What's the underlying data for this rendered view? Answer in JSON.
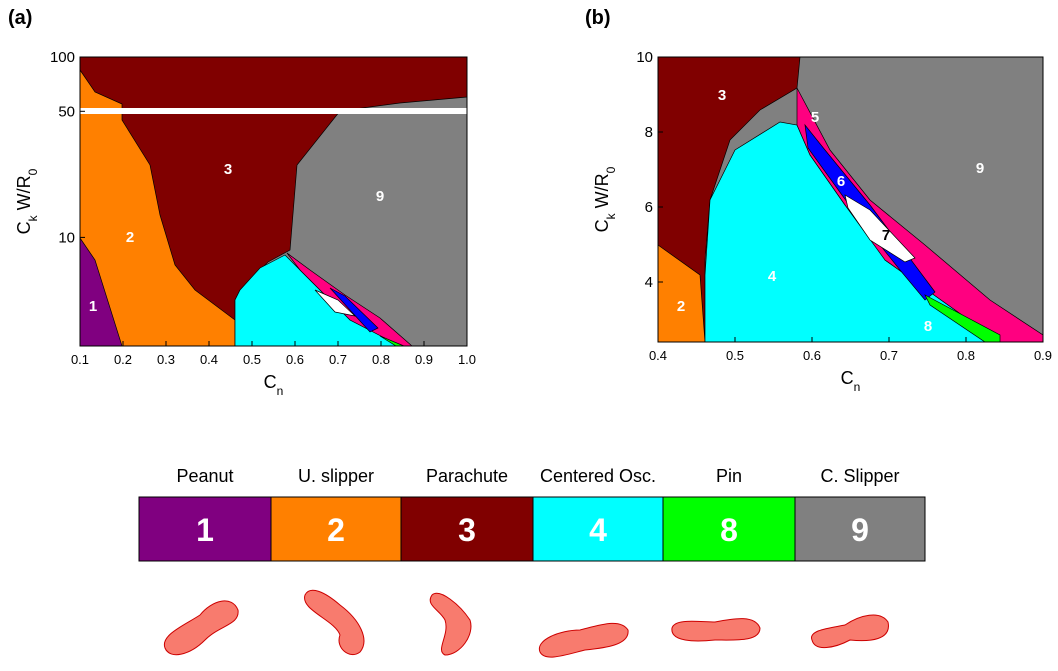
{
  "panels": [
    {
      "label": "(a)",
      "type": "area",
      "xlim": [
        0.1,
        1.0
      ],
      "xticks": [
        0.1,
        0.2,
        0.3,
        0.4,
        0.5,
        0.6,
        0.7,
        0.8,
        0.9,
        {
          "value": 1,
          "label": "1.0"
        }
      ],
      "ylim": [
        2.5,
        100
      ],
      "yticks": [
        10,
        50,
        100
      ],
      "log_y": true,
      "x_label": [
        "C",
        "n"
      ],
      "y_label": [
        "C",
        "k",
        " W/R",
        "0"
      ],
      "regions": [
        "1",
        "2",
        "3",
        "9"
      ]
    },
    {
      "label": "(b)",
      "type": "area",
      "xlim": [
        0.4,
        0.9
      ],
      "xticks": [
        0.4,
        0.5,
        0.6,
        0.7,
        0.8,
        0.9
      ],
      "ylim": [
        2.4,
        10
      ],
      "yticks": [
        4,
        6,
        8,
        10
      ],
      "log_y": false,
      "x_label": [
        "C",
        "n"
      ],
      "y_label": [
        "C",
        "k",
        " W/R",
        "0"
      ],
      "regions": [
        "3",
        "2",
        "4",
        "5",
        "6",
        "7",
        "8",
        "9"
      ]
    }
  ],
  "legend": [
    {
      "name": "Peanut",
      "number": "1",
      "color": "#800080"
    },
    {
      "name": "U. slipper",
      "number": "2",
      "color": "#ff8000"
    },
    {
      "name": "Parachute",
      "number": "3",
      "color": "#800000"
    },
    {
      "name": "Centered Osc.",
      "number": "4",
      "color": "#00ffff"
    },
    {
      "name": "Pin",
      "number": "8",
      "color": "#00ff00"
    },
    {
      "name": "C. Slipper",
      "number": "9",
      "color": "#808080"
    }
  ]
}
